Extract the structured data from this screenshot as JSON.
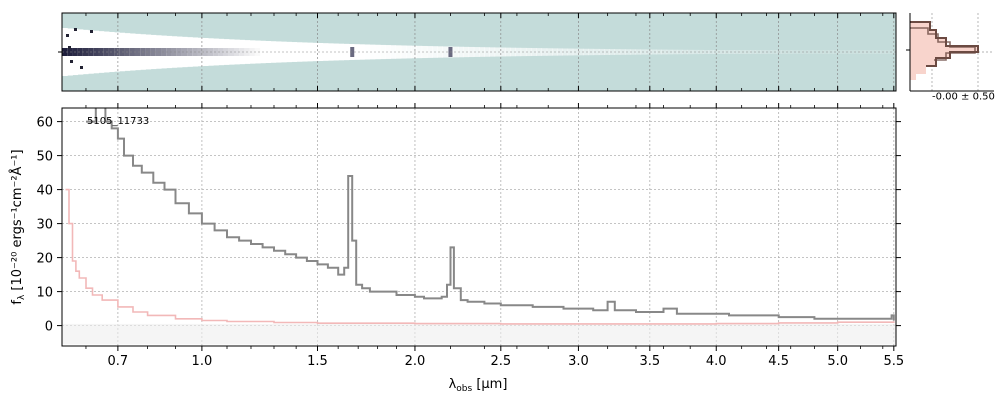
{
  "chart_data": [
    {
      "type": "heatmap",
      "panel": "2d-spectrum",
      "x_transform": "sqrt",
      "xlim": [
        0.53,
        5.52
      ],
      "colors": {
        "background": "#c4dcda",
        "trace": "#ffffff",
        "core": "#1e1e3c"
      }
    },
    {
      "type": "line",
      "panel": "1d-spectrum",
      "label": "5105_11733",
      "x_transform": "sqrt",
      "xlim": [
        0.53,
        5.52
      ],
      "ylim": [
        -6,
        64
      ],
      "xticks": [
        0.7,
        1.0,
        1.5,
        2.0,
        2.5,
        3.0,
        3.5,
        4.0,
        4.5,
        5.0,
        5.5
      ],
      "xtick_labels": [
        "0.7",
        "1.0",
        "1.5",
        "2.0",
        "2.5",
        "3.0",
        "3.5",
        "4.0",
        "4.5",
        "5.0",
        "5.5"
      ],
      "yticks": [
        0,
        10,
        20,
        30,
        40,
        50,
        60
      ],
      "ytick_labels": [
        "0",
        "10",
        "20",
        "30",
        "40",
        "50",
        "60"
      ],
      "xlabel_main": "λ",
      "xlabel_sub": "obs",
      "xlabel_unit": " [μm]",
      "ylabel_main": "f",
      "ylabel_sub": "λ",
      "ylabel_unit": " [10⁻²⁰ ergs⁻¹cm⁻²Å⁻¹]",
      "grid": true,
      "series": [
        {
          "role": "flux",
          "color": "#888888",
          "x": [
            0.6,
            0.63,
            0.66,
            0.68,
            0.7,
            0.72,
            0.75,
            0.78,
            0.82,
            0.86,
            0.9,
            0.95,
            1.0,
            1.05,
            1.1,
            1.15,
            1.2,
            1.25,
            1.3,
            1.35,
            1.4,
            1.45,
            1.5,
            1.55,
            1.6,
            1.63,
            1.65,
            1.67,
            1.69,
            1.72,
            1.76,
            1.8,
            1.85,
            1.9,
            1.95,
            2.0,
            2.05,
            2.1,
            2.15,
            2.18,
            2.2,
            2.22,
            2.26,
            2.3,
            2.4,
            2.5,
            2.6,
            2.7,
            2.8,
            2.9,
            3.0,
            3.1,
            3.18,
            3.2,
            3.25,
            3.3,
            3.4,
            3.5,
            3.6,
            3.7,
            3.8,
            3.9,
            4.0,
            4.1,
            4.2,
            4.3,
            4.4,
            4.5,
            4.6,
            4.7,
            4.8,
            4.9,
            5.0,
            5.1,
            5.2,
            5.3,
            5.4,
            5.48,
            5.5
          ],
          "y": [
            60,
            66,
            60,
            58,
            55,
            50,
            47,
            45,
            42,
            40,
            36,
            33,
            30,
            28,
            26,
            25,
            24,
            23,
            22,
            21,
            20,
            19,
            18,
            17,
            15,
            17,
            44,
            25,
            12,
            11,
            10,
            10,
            10,
            9,
            9,
            8.5,
            8,
            8,
            8.5,
            12,
            23,
            11,
            7.5,
            7,
            6.5,
            6,
            6,
            5.5,
            5.5,
            5,
            5,
            4.5,
            4.5,
            7,
            4.5,
            4.5,
            4,
            4,
            5,
            3.5,
            3.5,
            3.5,
            3.5,
            3,
            3,
            3,
            3,
            2.5,
            2.5,
            2.5,
            2,
            2,
            2,
            2,
            2,
            2,
            2,
            3,
            1.5
          ]
        },
        {
          "role": "error",
          "color": "#f2b8b8",
          "x": [
            0.54,
            0.55,
            0.56,
            0.57,
            0.58,
            0.6,
            0.62,
            0.65,
            0.7,
            0.75,
            0.8,
            0.9,
            1.0,
            1.1,
            1.3,
            1.5,
            2.0,
            2.5,
            3.0,
            3.5,
            4.0,
            4.5,
            5.0,
            5.5
          ],
          "y": [
            40,
            30,
            19,
            16,
            14,
            11,
            9,
            7.5,
            5.5,
            4,
            3,
            2,
            1.5,
            1.2,
            0.9,
            0.7,
            0.6,
            0.5,
            0.5,
            0.5,
            0.6,
            0.8,
            1.0,
            1.3
          ]
        }
      ]
    },
    {
      "type": "line",
      "panel": "profile",
      "xtick_label": "-0.00 ± 0.50",
      "colors": {
        "line": "#6b4a42",
        "fill": "#f8d4cc"
      }
    }
  ]
}
